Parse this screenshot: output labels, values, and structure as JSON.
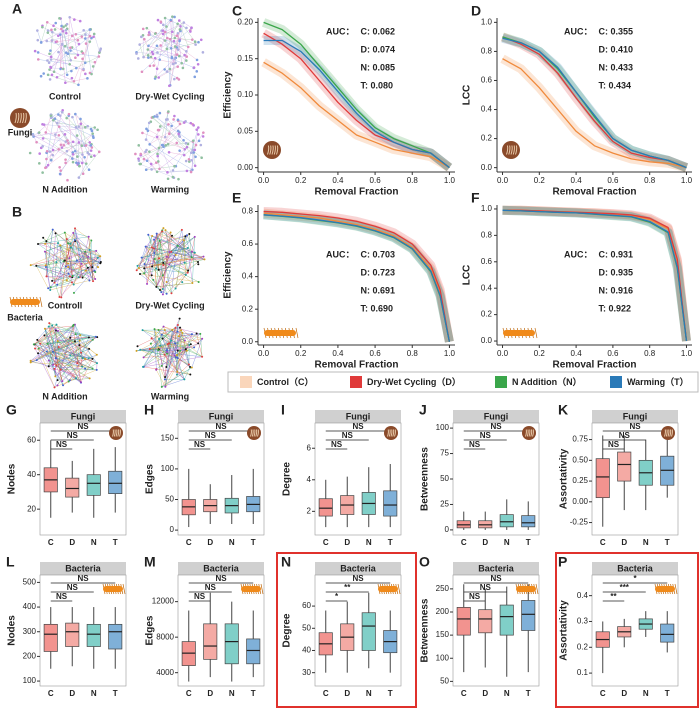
{
  "network_panels": [
    {
      "panel": "A",
      "group": "Fungi",
      "labels": [
        "Control",
        "Dry-Wet Cycling",
        "N Addition",
        "Warming"
      ]
    },
    {
      "panel": "B",
      "group": "Bacteria",
      "labels": [
        "Controll",
        "Dry-Wet Cycling",
        "N Addition",
        "Warming"
      ]
    }
  ],
  "legend": [
    "Control（C）",
    "Dry-Wet Cycling（D）",
    "N Addition（N）",
    "Warming（T）"
  ],
  "chart_data": [
    {
      "type": "line",
      "panel": "C",
      "xlabel": "Removal Fraction",
      "ylabel": "Efficiency",
      "x": [
        0,
        0.1,
        0.2,
        0.3,
        0.4,
        0.5,
        0.6,
        0.7,
        0.8,
        0.9,
        1.0
      ],
      "xlim": [
        -0.03,
        1.03
      ],
      "xticks": [
        {
          "value": 0,
          "label": "0.0"
        },
        0.2,
        0.4,
        0.6,
        0.8,
        {
          "value": 1,
          "label": "1.0"
        }
      ],
      "ylim": [
        -0.006,
        0.206
      ],
      "yticks": [
        {
          "value": 0,
          "label": "0.00"
        },
        0.05,
        {
          "value": 0.1,
          "label": "0.10"
        },
        0.15,
        {
          "value": 0.2,
          "label": "0.20"
        }
      ],
      "series": [
        {
          "color": "#f08a3c",
          "values": [
            0.145,
            0.13,
            0.11,
            0.085,
            0.065,
            0.045,
            0.035,
            0.025,
            0.02,
            0.015,
            0.0
          ]
        },
        {
          "color": "#e03a3a",
          "values": [
            0.185,
            0.17,
            0.15,
            0.12,
            0.09,
            0.065,
            0.045,
            0.035,
            0.025,
            0.02,
            0.0
          ]
        },
        {
          "color": "#3aa64a",
          "values": [
            0.2,
            0.19,
            0.17,
            0.14,
            0.11,
            0.08,
            0.055,
            0.04,
            0.03,
            0.02,
            0.0
          ]
        },
        {
          "color": "#2a7ab8",
          "values": [
            0.175,
            0.175,
            0.16,
            0.135,
            0.105,
            0.075,
            0.05,
            0.035,
            0.025,
            0.02,
            0.0
          ]
        }
      ],
      "auc": {
        "label": "AUC：",
        "items": [
          "C: 0.062",
          "D: 0.074",
          "N: 0.085",
          "T: 0.080"
        ]
      }
    },
    {
      "type": "line",
      "panel": "D",
      "xlabel": "Removal Fraction",
      "ylabel": "LCC",
      "x": [
        0,
        0.1,
        0.2,
        0.3,
        0.4,
        0.5,
        0.6,
        0.7,
        0.8,
        0.9,
        1.0
      ],
      "xlim": [
        -0.03,
        1.03
      ],
      "xticks": [
        {
          "value": 0,
          "label": "0.0"
        },
        0.2,
        0.4,
        0.6,
        0.8,
        {
          "value": 1,
          "label": "1.0"
        }
      ],
      "ylim": [
        -0.03,
        1.03
      ],
      "yticks": [
        {
          "value": 0,
          "label": "0.0"
        },
        0.2,
        0.4,
        0.6,
        0.8,
        {
          "value": 1,
          "label": "1.0"
        }
      ],
      "series": [
        {
          "color": "#f08a3c",
          "values": [
            0.75,
            0.68,
            0.55,
            0.4,
            0.25,
            0.15,
            0.1,
            0.06,
            0.04,
            0.03,
            0.0
          ]
        },
        {
          "color": "#e03a3a",
          "values": [
            0.9,
            0.85,
            0.78,
            0.65,
            0.48,
            0.32,
            0.18,
            0.1,
            0.07,
            0.05,
            0.0
          ]
        },
        {
          "color": "#3aa64a",
          "values": [
            0.9,
            0.86,
            0.8,
            0.68,
            0.52,
            0.35,
            0.2,
            0.12,
            0.08,
            0.05,
            0.0
          ]
        },
        {
          "color": "#2a7ab8",
          "values": [
            0.89,
            0.86,
            0.8,
            0.69,
            0.52,
            0.36,
            0.2,
            0.12,
            0.08,
            0.05,
            0.0
          ]
        }
      ],
      "auc": {
        "label": "AUC：",
        "items": [
          "C: 0.355",
          "D: 0.410",
          "N: 0.433",
          "T: 0.434"
        ]
      }
    },
    {
      "type": "line",
      "panel": "E",
      "xlabel": "Removal Fraction",
      "ylabel": "Efficiency",
      "x": [
        0,
        0.1,
        0.2,
        0.3,
        0.4,
        0.5,
        0.6,
        0.7,
        0.8,
        0.9,
        0.95,
        1.0
      ],
      "xlim": [
        -0.03,
        1.03
      ],
      "xticks": [
        {
          "value": 0,
          "label": "0.0"
        },
        0.2,
        0.4,
        0.6,
        0.8,
        {
          "value": 1,
          "label": "1.0"
        }
      ],
      "ylim": [
        -0.02,
        0.84
      ],
      "yticks": [
        {
          "value": 0,
          "label": "0.0"
        },
        0.2,
        0.4,
        0.6,
        0.8
      ],
      "series": [
        {
          "color": "#f08a3c",
          "values": [
            0.79,
            0.78,
            0.77,
            0.76,
            0.74,
            0.72,
            0.69,
            0.65,
            0.58,
            0.45,
            0.3,
            0.0
          ]
        },
        {
          "color": "#e03a3a",
          "values": [
            0.8,
            0.795,
            0.785,
            0.775,
            0.76,
            0.74,
            0.71,
            0.67,
            0.6,
            0.47,
            0.32,
            0.0
          ]
        },
        {
          "color": "#3aa64a",
          "values": [
            0.78,
            0.77,
            0.76,
            0.745,
            0.73,
            0.71,
            0.68,
            0.64,
            0.57,
            0.43,
            0.28,
            0.0
          ]
        },
        {
          "color": "#2a7ab8",
          "values": [
            0.78,
            0.772,
            0.762,
            0.748,
            0.732,
            0.712,
            0.682,
            0.642,
            0.572,
            0.435,
            0.285,
            0.0
          ]
        }
      ],
      "auc": {
        "label": "AUC：",
        "items": [
          "C: 0.703",
          "D: 0.723",
          "N: 0.691",
          "T: 0.690"
        ]
      }
    },
    {
      "type": "line",
      "panel": "F",
      "xlabel": "Removal Fraction",
      "ylabel": "LCC",
      "x": [
        0,
        0.1,
        0.2,
        0.3,
        0.4,
        0.5,
        0.6,
        0.7,
        0.8,
        0.9,
        0.95,
        1.0
      ],
      "xlim": [
        -0.03,
        1.03
      ],
      "xticks": [
        {
          "value": 0,
          "label": "0.0"
        },
        0.2,
        0.4,
        0.6,
        0.8,
        {
          "value": 1,
          "label": "1.0"
        }
      ],
      "ylim": [
        -0.03,
        1.03
      ],
      "yticks": [
        {
          "value": 0,
          "label": "0.0"
        },
        0.2,
        0.4,
        0.6,
        0.8,
        {
          "value": 1,
          "label": "1.0"
        }
      ],
      "series": [
        {
          "color": "#f08a3c",
          "values": [
            0.99,
            0.99,
            0.985,
            0.98,
            0.975,
            0.97,
            0.96,
            0.95,
            0.92,
            0.85,
            0.6,
            0.0
          ]
        },
        {
          "color": "#e03a3a",
          "values": [
            0.99,
            0.99,
            0.985,
            0.98,
            0.975,
            0.97,
            0.965,
            0.955,
            0.93,
            0.86,
            0.62,
            0.0
          ]
        },
        {
          "color": "#3aa64a",
          "values": [
            0.99,
            0.985,
            0.98,
            0.975,
            0.97,
            0.96,
            0.95,
            0.94,
            0.9,
            0.82,
            0.55,
            0.0
          ]
        },
        {
          "color": "#2a7ab8",
          "values": [
            0.99,
            0.985,
            0.98,
            0.975,
            0.97,
            0.962,
            0.952,
            0.942,
            0.905,
            0.825,
            0.56,
            0.0
          ]
        }
      ],
      "auc": {
        "label": "AUC：",
        "items": [
          "C: 0.931",
          "D: 0.935",
          "N: 0.916",
          "T: 0.922"
        ]
      }
    },
    {
      "type": "box",
      "panel": "G",
      "title": "Fungi",
      "ylabel": "Nodes",
      "categories": [
        "C",
        "D",
        "N",
        "T"
      ],
      "colors": [
        "#f2938f",
        "#f4aaa4",
        "#80cfc8",
        "#7fb0d8"
      ],
      "ylim": [
        5,
        70
      ],
      "yticks": [
        20,
        40,
        60
      ],
      "boxes": [
        {
          "low": 15,
          "q1": 30,
          "median": 37,
          "q3": 44,
          "high": 60
        },
        {
          "low": 18,
          "q1": 27,
          "median": 32,
          "q3": 38,
          "high": 48
        },
        {
          "low": 15,
          "q1": 28,
          "median": 35,
          "q3": 40,
          "high": 55
        },
        {
          "low": 18,
          "q1": 29,
          "median": 35,
          "q3": 42,
          "high": 56
        }
      ],
      "signif": [
        "NS",
        "NS",
        "NS"
      ]
    },
    {
      "type": "box",
      "panel": "H",
      "title": "Fungi",
      "ylabel": "Edges",
      "categories": [
        "C",
        "D",
        "N",
        "T"
      ],
      "colors": [
        "#f2938f",
        "#f4aaa4",
        "#80cfc8",
        "#7fb0d8"
      ],
      "ylim": [
        -8,
        175
      ],
      "yticks": [
        0,
        50,
        100,
        150
      ],
      "boxes": [
        {
          "low": 5,
          "q1": 25,
          "median": 38,
          "q3": 50,
          "high": 100
        },
        {
          "low": 10,
          "q1": 30,
          "median": 40,
          "q3": 50,
          "high": 75
        },
        {
          "low": 10,
          "q1": 28,
          "median": 40,
          "q3": 52,
          "high": 90
        },
        {
          "low": 10,
          "q1": 30,
          "median": 42,
          "q3": 55,
          "high": 100
        }
      ],
      "signif": [
        "NS",
        "NS",
        "NS"
      ]
    },
    {
      "type": "box",
      "panel": "I",
      "title": "Fungi",
      "ylabel": "Degree",
      "categories": [
        "C",
        "D",
        "N",
        "T"
      ],
      "colors": [
        "#f2938f",
        "#f4aaa4",
        "#80cfc8",
        "#7fb0d8"
      ],
      "ylim": [
        0.5,
        7.6
      ],
      "yticks": [
        2,
        4,
        6
      ],
      "boxes": [
        {
          "low": 1,
          "q1": 1.7,
          "median": 2.2,
          "q3": 2.8,
          "high": 4
        },
        {
          "low": 1,
          "q1": 1.8,
          "median": 2.4,
          "q3": 3,
          "high": 4.2
        },
        {
          "low": 1,
          "q1": 1.8,
          "median": 2.5,
          "q3": 3.2,
          "high": 4.8
        },
        {
          "low": 1,
          "q1": 1.7,
          "median": 2.4,
          "q3": 3.3,
          "high": 5
        }
      ],
      "signif": [
        "NS",
        "NS",
        "NS"
      ]
    },
    {
      "type": "box",
      "panel": "J",
      "title": "Fungi",
      "ylabel": "Betweenness",
      "categories": [
        "C",
        "D",
        "N",
        "T"
      ],
      "colors": [
        "#f2938f",
        "#f4aaa4",
        "#80cfc8",
        "#7fb0d8"
      ],
      "ylim": [
        -5,
        105
      ],
      "yticks": [
        0,
        25,
        50,
        75,
        100
      ],
      "boxes": [
        {
          "low": 0,
          "q1": 2,
          "median": 5,
          "q3": 9,
          "high": 18
        },
        {
          "low": 0,
          "q1": 2,
          "median": 5,
          "q3": 9,
          "high": 18
        },
        {
          "low": 0,
          "q1": 3,
          "median": 8,
          "q3": 15,
          "high": 30
        },
        {
          "low": 0,
          "q1": 3,
          "median": 7,
          "q3": 14,
          "high": 28
        }
      ],
      "signif": [
        "NS",
        "NS",
        "NS"
      ]
    },
    {
      "type": "box",
      "panel": "K",
      "title": "Fungi",
      "ylabel": "Assortativity",
      "categories": [
        "C",
        "D",
        "N",
        "T"
      ],
      "colors": [
        "#f2938f",
        "#f4aaa4",
        "#80cfc8",
        "#7fb0d8"
      ],
      "ylim": [
        -0.4,
        0.95
      ],
      "yticks": [
        -0.25,
        {
          "value": 0,
          "label": "0.00"
        },
        0.25,
        {
          "value": 0.5,
          "label": "0.50"
        },
        0.75
      ],
      "boxes": [
        {
          "low": -0.3,
          "q1": 0.05,
          "median": 0.3,
          "q3": 0.52,
          "high": 0.8
        },
        {
          "low": -0.1,
          "q1": 0.25,
          "median": 0.45,
          "q3": 0.6,
          "high": 0.8
        },
        {
          "low": -0.1,
          "q1": 0.2,
          "median": 0.35,
          "q3": 0.5,
          "high": 0.75
        },
        {
          "low": 0.05,
          "q1": 0.2,
          "median": 0.38,
          "q3": 0.55,
          "high": 0.75
        }
      ],
      "signif": [
        "NS",
        "NS",
        "NS"
      ]
    },
    {
      "type": "box",
      "panel": "L",
      "title": "Bacteria",
      "ylabel": "Nodes",
      "categories": [
        "C",
        "D",
        "N",
        "T"
      ],
      "colors": [
        "#f2938f",
        "#f4aaa4",
        "#80cfc8",
        "#7fb0d8"
      ],
      "ylim": [
        80,
        530
      ],
      "yticks": [
        100,
        200,
        300,
        400,
        500
      ],
      "boxes": [
        {
          "low": 150,
          "q1": 220,
          "median": 290,
          "q3": 330,
          "high": 400
        },
        {
          "low": 160,
          "q1": 240,
          "median": 300,
          "q3": 335,
          "high": 400
        },
        {
          "low": 150,
          "q1": 240,
          "median": 290,
          "q3": 330,
          "high": 400
        },
        {
          "low": 150,
          "q1": 230,
          "median": 300,
          "q3": 330,
          "high": 400
        }
      ],
      "signif": [
        "NS",
        "NS",
        "NS"
      ]
    },
    {
      "type": "box",
      "panel": "M",
      "title": "Bacteria",
      "ylabel": "Edges",
      "categories": [
        "C",
        "D",
        "N",
        "T"
      ],
      "colors": [
        "#f2938f",
        "#f4aaa4",
        "#80cfc8",
        "#7fb0d8"
      ],
      "ylim": [
        2500,
        15000
      ],
      "yticks": [
        4000,
        8000,
        12000
      ],
      "boxes": [
        {
          "low": 3000,
          "q1": 4800,
          "median": 6200,
          "q3": 7500,
          "high": 11000
        },
        {
          "low": 3500,
          "q1": 5500,
          "median": 7000,
          "q3": 9500,
          "high": 13000
        },
        {
          "low": 3000,
          "q1": 5000,
          "median": 7500,
          "q3": 9500,
          "high": 12000
        },
        {
          "low": 3500,
          "q1": 5000,
          "median": 6500,
          "q3": 7800,
          "high": 11000
        }
      ],
      "signif": [
        "NS",
        "NS",
        "NS"
      ]
    },
    {
      "type": "box",
      "panel": "N",
      "title": "Bacteria",
      "ylabel": "Degree",
      "categories": [
        "C",
        "D",
        "N",
        "T"
      ],
      "colors": [
        "#f2938f",
        "#f4aaa4",
        "#80cfc8",
        "#7fb0d8"
      ],
      "ylim": [
        24,
        74
      ],
      "yticks": [
        30,
        40,
        50,
        60
      ],
      "boxes": [
        {
          "low": 30,
          "q1": 38,
          "median": 43,
          "q3": 48,
          "high": 58
        },
        {
          "low": 30,
          "q1": 40,
          "median": 46,
          "q3": 52,
          "high": 62
        },
        {
          "low": 32,
          "q1": 40,
          "median": 51,
          "q3": 57,
          "high": 66
        },
        {
          "low": 30,
          "q1": 39,
          "median": 44,
          "q3": 49,
          "high": 58
        }
      ],
      "signif": [
        "*",
        "**",
        "NS"
      ]
    },
    {
      "type": "box",
      "panel": "O",
      "title": "Bacteria",
      "ylabel": "Betweenness",
      "categories": [
        "C",
        "D",
        "N",
        "T"
      ],
      "colors": [
        "#f2938f",
        "#f4aaa4",
        "#80cfc8",
        "#7fb0d8"
      ],
      "ylim": [
        40,
        280
      ],
      "yticks": [
        50,
        100,
        150,
        200,
        250
      ],
      "boxes": [
        {
          "low": 70,
          "q1": 150,
          "median": 185,
          "q3": 210,
          "high": 260
        },
        {
          "low": 80,
          "q1": 155,
          "median": 185,
          "q3": 205,
          "high": 250
        },
        {
          "low": 60,
          "q1": 150,
          "median": 190,
          "q3": 215,
          "high": 255
        },
        {
          "low": 70,
          "q1": 160,
          "median": 195,
          "q3": 225,
          "high": 260
        }
      ],
      "signif": [
        "NS",
        "NS",
        "NS"
      ]
    },
    {
      "type": "box",
      "panel": "P",
      "title": "Bacteria",
      "ylabel": "Assortativity",
      "categories": [
        "C",
        "D",
        "N",
        "T"
      ],
      "colors": [
        "#f2938f",
        "#f4aaa4",
        "#80cfc8",
        "#7fb0d8"
      ],
      "ylim": [
        0.05,
        0.48
      ],
      "yticks": [
        0.1,
        0.2,
        0.3,
        0.4
      ],
      "boxes": [
        {
          "low": 0.1,
          "q1": 0.2,
          "median": 0.23,
          "q3": 0.26,
          "high": 0.3
        },
        {
          "low": 0.2,
          "q1": 0.24,
          "median": 0.26,
          "q3": 0.28,
          "high": 0.31
        },
        {
          "low": 0.24,
          "q1": 0.27,
          "median": 0.29,
          "q3": 0.31,
          "high": 0.34
        },
        {
          "low": 0.18,
          "q1": 0.22,
          "median": 0.25,
          "q3": 0.29,
          "high": 0.34
        }
      ],
      "signif": [
        "**",
        "***",
        "*"
      ]
    }
  ]
}
